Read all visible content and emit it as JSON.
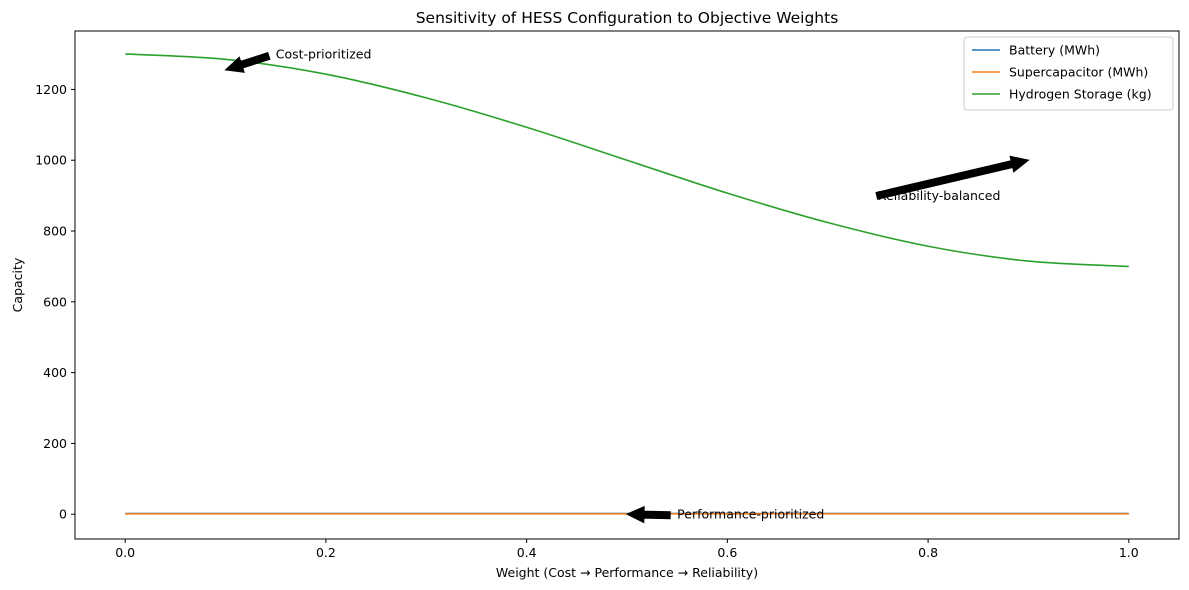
{
  "chart_data": {
    "type": "line",
    "title": "Sensitivity of HESS Configuration to Objective Weights",
    "xlabel": "Weight (Cost → Performance → Reliability)",
    "ylabel": "Capacity",
    "xlim": [
      -0.05,
      1.05
    ],
    "ylim": [
      -70,
      1365
    ],
    "xticks": [
      0.0,
      0.2,
      0.4,
      0.6,
      0.8,
      1.0
    ],
    "xtick_labels": [
      "0.0",
      "0.2",
      "0.4",
      "0.6",
      "0.8",
      "1.0"
    ],
    "yticks": [
      0,
      200,
      400,
      600,
      800,
      1000,
      1200
    ],
    "ytick_labels": [
      "0",
      "200",
      "400",
      "600",
      "800",
      "1000",
      "1200"
    ],
    "grid": false,
    "legend_position": "top-right",
    "x": [
      0.0,
      0.1,
      0.2,
      0.3,
      0.4,
      0.5,
      0.6,
      0.7,
      0.8,
      0.9,
      1.0
    ],
    "series": [
      {
        "name": "Battery (MWh)",
        "color": "#1f77b4",
        "values": [
          2,
          2,
          2,
          2,
          2,
          2,
          2,
          2,
          2,
          2,
          2
        ]
      },
      {
        "name": "Supercapacitor (MWh)",
        "color": "#ff7f0e",
        "values": [
          1,
          1,
          1,
          1,
          1,
          1,
          1,
          1,
          1,
          1,
          1
        ]
      },
      {
        "name": "Hydrogen Storage (kg)",
        "color": "#2ca02c",
        "values": [
          1300,
          1285,
          1243,
          1176,
          1093,
          1000,
          907,
          824,
          757,
          715,
          700
        ]
      }
    ],
    "annotations": [
      {
        "text": "Cost-prioritized",
        "xytext": [
          0.15,
          1300
        ],
        "xy": [
          0.1,
          1255
        ]
      },
      {
        "text": "Performance-prioritized",
        "xytext": [
          0.55,
          0
        ],
        "xy": [
          0.5,
          0
        ]
      },
      {
        "text": "Reliability-balanced",
        "xytext": [
          0.75,
          900
        ],
        "xy": [
          0.9,
          1000
        ]
      }
    ]
  }
}
